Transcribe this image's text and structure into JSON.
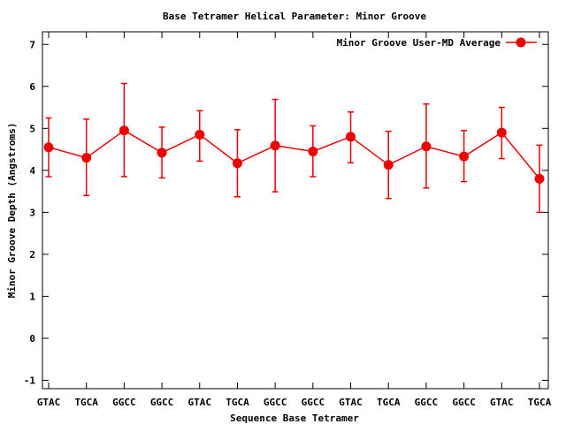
{
  "chart_data": {
    "type": "line",
    "title": "Base Tetramer Helical Parameter: Minor Groove",
    "xlabel": "Sequence Base Tetramer",
    "ylabel": "Minor Groove Depth (Angstroms)",
    "categories": [
      "GTAC",
      "TGCA",
      "GGCC",
      "GGCC",
      "GTAC",
      "TGCA",
      "GGCC",
      "GGCC",
      "GTAC",
      "TGCA",
      "GGCC",
      "GGCC",
      "GTAC",
      "TGCA"
    ],
    "series": [
      {
        "name": "Minor Groove User-MD Average",
        "values": [
          4.55,
          4.3,
          4.95,
          4.42,
          4.85,
          4.17,
          4.59,
          4.45,
          4.8,
          4.13,
          4.57,
          4.33,
          4.9,
          3.8
        ],
        "yerr_low": [
          3.85,
          3.4,
          3.85,
          3.82,
          4.22,
          3.37,
          3.49,
          3.85,
          4.18,
          3.33,
          3.58,
          3.73,
          4.28,
          3.0
        ],
        "yerr_high": [
          5.25,
          5.22,
          6.07,
          5.03,
          5.42,
          4.97,
          5.69,
          5.06,
          5.39,
          4.93,
          5.58,
          4.95,
          5.5,
          4.6
        ],
        "color": "#ee0000"
      }
    ],
    "ylim": [
      -1.2,
      7.3
    ],
    "yticks": [
      -1,
      0,
      1,
      2,
      3,
      4,
      5,
      6,
      7
    ],
    "grid": false,
    "legend_position": "top-right"
  }
}
